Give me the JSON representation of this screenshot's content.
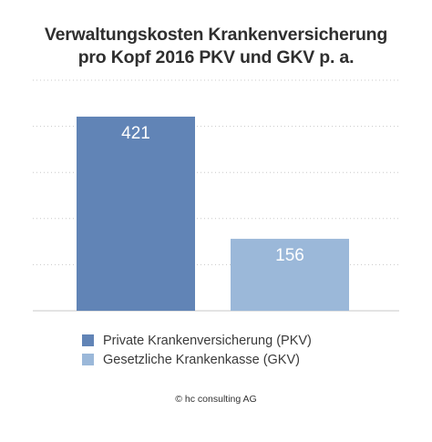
{
  "chart_data": {
    "type": "bar",
    "title": [
      "Verwaltungskosten Krankenversicherung",
      "pro Kopf 2016 PKV und GKV p. a."
    ],
    "xlabel": "",
    "ylabel": "",
    "ylim": [
      0,
      500
    ],
    "grid": true,
    "legend_position": "bottom",
    "series": [
      {
        "name": "Private Krankenversicherung (PKV)",
        "value": 421,
        "label": "421",
        "color": "#6184b6"
      },
      {
        "name": "Gesetzliche Krankenkasse (GKV)",
        "value": 156,
        "label": "156",
        "color": "#9bb8d9"
      }
    ]
  },
  "footer": {
    "copyright": "© hc consulting AG"
  },
  "colors": {
    "pkv": "#6184b6",
    "gkv": "#9bb8d9",
    "grid": "#c8c8c8",
    "label_on_bar": "#ffffff"
  }
}
